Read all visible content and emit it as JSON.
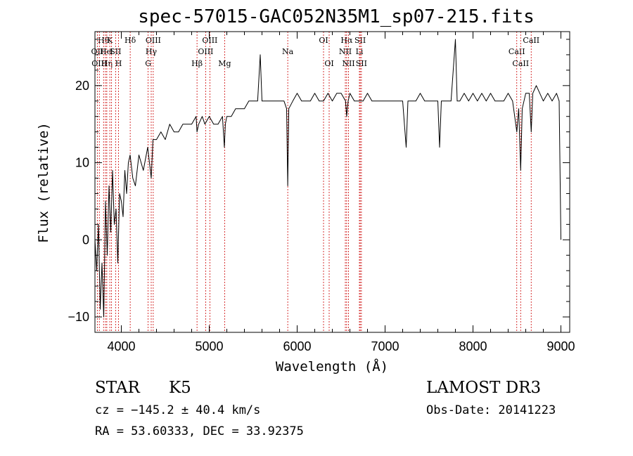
{
  "chart_data": {
    "type": "line",
    "title": "spec-57015-GAC052N35M1_sp07-215.fits",
    "xlabel": "Wavelength (Å)",
    "ylabel": "Flux (relative)",
    "xlim": [
      3700,
      9100
    ],
    "ylim": [
      -12,
      27
    ],
    "xticks": [
      4000,
      5000,
      6000,
      7000,
      8000,
      9000
    ],
    "yticks": [
      -10,
      0,
      10,
      20
    ],
    "series": [
      {
        "name": "flux",
        "x": [
          3700,
          3720,
          3740,
          3760,
          3780,
          3800,
          3820,
          3840,
          3860,
          3880,
          3900,
          3920,
          3940,
          3960,
          3980,
          4000,
          4020,
          4040,
          4060,
          4080,
          4100,
          4130,
          4160,
          4200,
          4250,
          4300,
          4340,
          4360,
          4400,
          4450,
          4500,
          4550,
          4600,
          4650,
          4700,
          4750,
          4800,
          4850,
          4861,
          4880,
          4920,
          4950,
          5000,
          5050,
          5100,
          5150,
          5172,
          5183,
          5200,
          5250,
          5300,
          5350,
          5400,
          5450,
          5500,
          5550,
          5580,
          5600,
          5650,
          5700,
          5750,
          5800,
          5850,
          5880,
          5893,
          5905,
          5950,
          6000,
          6050,
          6100,
          6150,
          6200,
          6250,
          6300,
          6350,
          6400,
          6450,
          6500,
          6550,
          6563,
          6580,
          6600,
          6650,
          6700,
          6750,
          6800,
          6850,
          6900,
          6950,
          7000,
          7050,
          7100,
          7150,
          7200,
          7240,
          7260,
          7300,
          7350,
          7400,
          7450,
          7500,
          7550,
          7600,
          7620,
          7640,
          7660,
          7700,
          7750,
          7800,
          7820,
          7850,
          7900,
          7950,
          8000,
          8050,
          8100,
          8150,
          8200,
          8250,
          8300,
          8350,
          8400,
          8450,
          8498,
          8520,
          8542,
          8560,
          8600,
          8640,
          8662,
          8680,
          8720,
          8760,
          8800,
          8850,
          8900,
          8950,
          8980,
          9000
        ],
        "values": [
          0,
          -4,
          2,
          -9,
          -3,
          -10,
          5,
          -2,
          7,
          1,
          9,
          2,
          4,
          -3,
          6,
          5,
          3,
          9,
          6,
          10,
          11,
          8,
          7,
          11,
          9,
          12,
          8,
          13,
          13,
          14,
          13,
          15,
          14,
          14,
          15,
          15,
          15,
          16,
          14,
          15,
          16,
          15,
          16,
          15,
          15,
          16,
          12,
          15,
          16,
          16,
          17,
          17,
          17,
          18,
          18,
          18,
          24,
          18,
          18,
          18,
          18,
          18,
          18,
          17,
          7,
          17,
          18,
          19,
          18,
          18,
          18,
          19,
          18,
          18,
          19,
          18,
          19,
          19,
          18,
          16,
          18,
          19,
          18,
          18,
          18,
          19,
          18,
          18,
          18,
          18,
          18,
          18,
          18,
          18,
          12,
          18,
          18,
          18,
          19,
          18,
          18,
          18,
          18,
          12,
          18,
          18,
          18,
          18,
          26,
          18,
          18,
          19,
          18,
          19,
          18,
          19,
          18,
          19,
          18,
          18,
          18,
          19,
          18,
          14,
          17,
          9,
          17,
          19,
          19,
          14,
          19,
          20,
          19,
          18,
          19,
          18,
          19,
          18,
          0
        ]
      }
    ],
    "spectral_lines": [
      {
        "name": "Hθ",
        "x": 3798,
        "row": 1
      },
      {
        "name": "OII",
        "x": 3727,
        "row": 2
      },
      {
        "name": "OIII",
        "x": 3750,
        "row": 3
      },
      {
        "name": "He",
        "x": 3820,
        "row": 2
      },
      {
        "name": "Hη",
        "x": 3835,
        "row": 3
      },
      {
        "name": "K",
        "x": 3869,
        "row": 1
      },
      {
        "name": "I",
        "x": 3889,
        "row": 2
      },
      {
        "name": "SII",
        "x": 3935,
        "row": 2
      },
      {
        "name": "H",
        "x": 3968,
        "row": 3
      },
      {
        "name": "Hδ",
        "x": 4101,
        "row": 1
      },
      {
        "name": "OIII",
        "x": 4363,
        "row": 1
      },
      {
        "name": "Hγ",
        "x": 4340,
        "row": 2
      },
      {
        "name": "G",
        "x": 4305,
        "row": 3
      },
      {
        "name": "OIII",
        "x": 5007,
        "row": 1
      },
      {
        "name": "OIII",
        "x": 4959,
        "row": 2
      },
      {
        "name": "Hβ",
        "x": 4861,
        "row": 3
      },
      {
        "name": "Mg",
        "x": 5175,
        "row": 3
      },
      {
        "name": "Na",
        "x": 5893,
        "row": 2
      },
      {
        "name": "OI",
        "x": 6300,
        "row": 1
      },
      {
        "name": "OI",
        "x": 6364,
        "row": 3
      },
      {
        "name": "Hα",
        "x": 6563,
        "row": 1
      },
      {
        "name": "SII",
        "x": 6717,
        "row": 1
      },
      {
        "name": "NII",
        "x": 6548,
        "row": 2
      },
      {
        "name": "Li",
        "x": 6708,
        "row": 2
      },
      {
        "name": "NII",
        "x": 6584,
        "row": 3
      },
      {
        "name": "SII",
        "x": 6731,
        "row": 3
      },
      {
        "name": "CaII",
        "x": 8662,
        "row": 1
      },
      {
        "name": "CaII",
        "x": 8498,
        "row": 2
      },
      {
        "name": "CaII",
        "x": 8542,
        "row": 3
      }
    ]
  },
  "info": {
    "object_class": "STAR",
    "subclass": "K5",
    "survey": "LAMOST DR3",
    "velocity": "cz = −145.2 ± 40.4 km/s",
    "obs_date": "Obs-Date: 20141223",
    "coords": "RA =  53.60333, DEC =  33.92375"
  },
  "colors": {
    "spectrum": "#000000",
    "line_markers": "#cc0000",
    "axes": "#000000"
  }
}
